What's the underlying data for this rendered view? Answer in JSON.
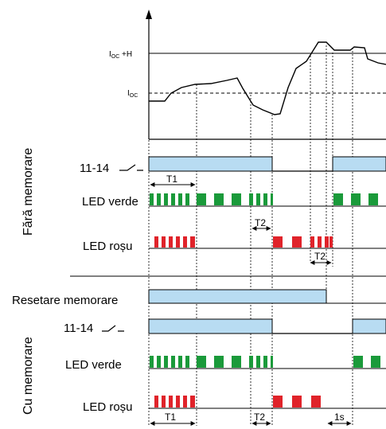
{
  "colors": {
    "relay_fill": "#b8dcf2",
    "relay_stroke": "#000000",
    "led_green": "#1a9a3a",
    "led_red": "#e0232a",
    "line": "#000000",
    "background": "#ffffff"
  },
  "top_graph": {
    "level_high_label": "I",
    "level_high_sub": "OC",
    "level_high_suffix": " +H",
    "level_low_label": "I",
    "level_low_sub": "OC"
  },
  "section_without_memory": {
    "side_label": "Fără memorare",
    "relay_label": "11-14",
    "green_led_label": "LED verde",
    "red_led_label": "LED roșu",
    "t1_label": "T1",
    "t2_label_green": "T2",
    "t2_label_red": "T2"
  },
  "section_with_memory": {
    "side_label": "Cu memorare",
    "reset_label": "Resetare memorare",
    "relay_label": "11-14",
    "green_led_label": "LED verde",
    "red_led_label": "LED roșu",
    "t1_label": "T1",
    "t2_label": "T2",
    "one_s_label": "1s"
  },
  "icons": {
    "relay_contact": "switch-contact-icon",
    "arrow_up": "axis-arrow-icon"
  }
}
